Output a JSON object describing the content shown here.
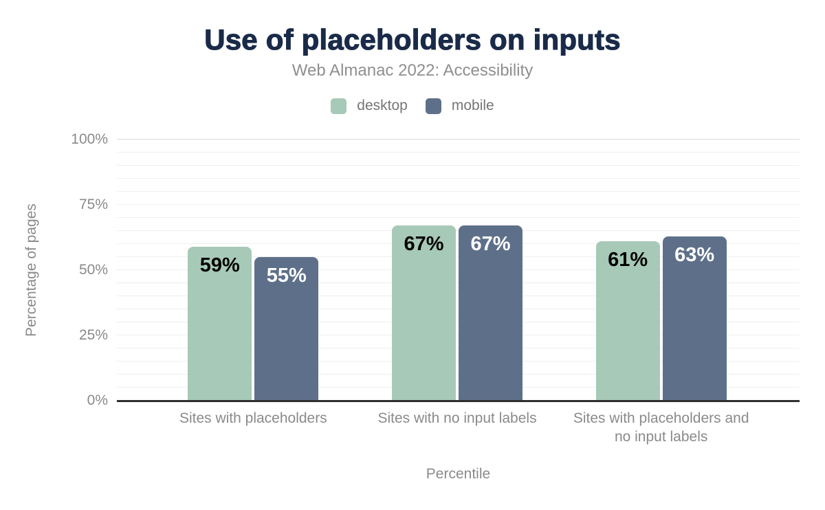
{
  "chart_data": {
    "type": "bar",
    "title": "Use of placeholders on inputs",
    "subtitle": "Web Almanac 2022: Accessibility",
    "xlabel": "Percentile",
    "ylabel": "Percentage of pages",
    "categories": [
      "Sites with placeholders",
      "Sites with no input labels",
      "Sites with placeholders and no input labels"
    ],
    "series": [
      {
        "name": "desktop",
        "color": "#a7c9b8",
        "values": [
          59,
          67,
          61
        ],
        "labels": [
          "59%",
          "67%",
          "61%"
        ],
        "label_color": "#000000"
      },
      {
        "name": "mobile",
        "color": "#5e7089",
        "values": [
          55,
          67,
          63
        ],
        "labels": [
          "55%",
          "67%",
          "63%"
        ],
        "label_color": "#ffffff"
      }
    ],
    "ylim": [
      0,
      100
    ],
    "yticks": [
      {
        "label": "0%",
        "value": 0
      },
      {
        "label": "25%",
        "value": 25
      },
      {
        "label": "50%",
        "value": 50
      },
      {
        "label": "75%",
        "value": 75
      },
      {
        "label": "100%",
        "value": 100
      }
    ],
    "grid": "horizontal",
    "grid_step": 5,
    "grid_minor_color": "#efefef",
    "grid_major_color": "#d9d9d9",
    "axis_line_color": "#2e2e2e",
    "legend_position": "top",
    "title_color": "#1a2b49",
    "subtitle_color": "#8f8f8f",
    "axis_text_color": "#8a8a8a"
  }
}
